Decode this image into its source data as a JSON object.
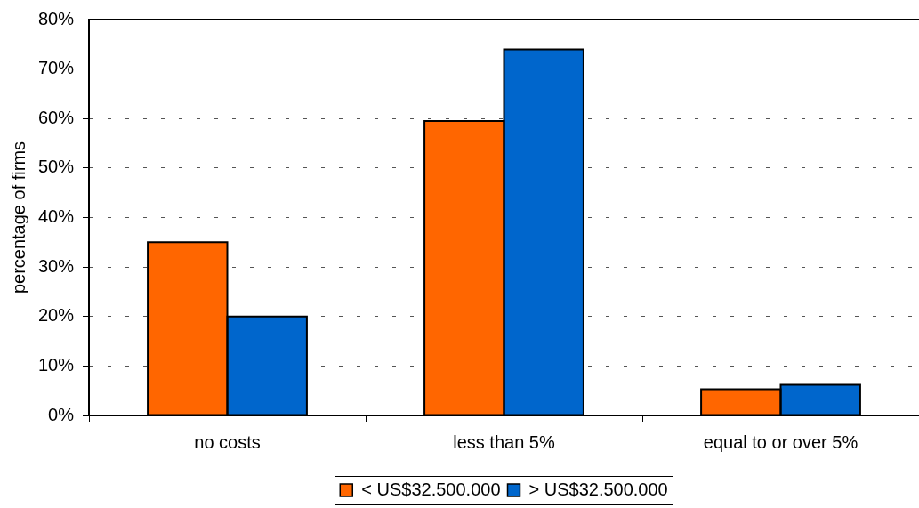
{
  "chart_data": {
    "type": "bar",
    "ylabel": "percentage of firms",
    "categories": [
      "no costs",
      "less than 5%",
      "equal to or over 5%"
    ],
    "series": [
      {
        "name": "< US$32.500.000",
        "color": "#ff6600",
        "values": [
          35,
          59.5,
          5.3
        ]
      },
      {
        "name": "> US$32.500.000",
        "color": "#0066cc",
        "values": [
          20,
          74,
          6.2
        ]
      }
    ],
    "ylim": [
      0,
      80
    ],
    "yticks": [
      {
        "value": 0,
        "label": "0%"
      },
      {
        "value": 10,
        "label": "10%"
      },
      {
        "value": 20,
        "label": "20%"
      },
      {
        "value": 30,
        "label": "30%"
      },
      {
        "value": 40,
        "label": "40%"
      },
      {
        "value": 50,
        "label": "50%"
      },
      {
        "value": 60,
        "label": "60%"
      },
      {
        "value": 70,
        "label": "70%"
      },
      {
        "value": 80,
        "label": "80%"
      }
    ],
    "grid": "y",
    "legend": "bottom"
  }
}
